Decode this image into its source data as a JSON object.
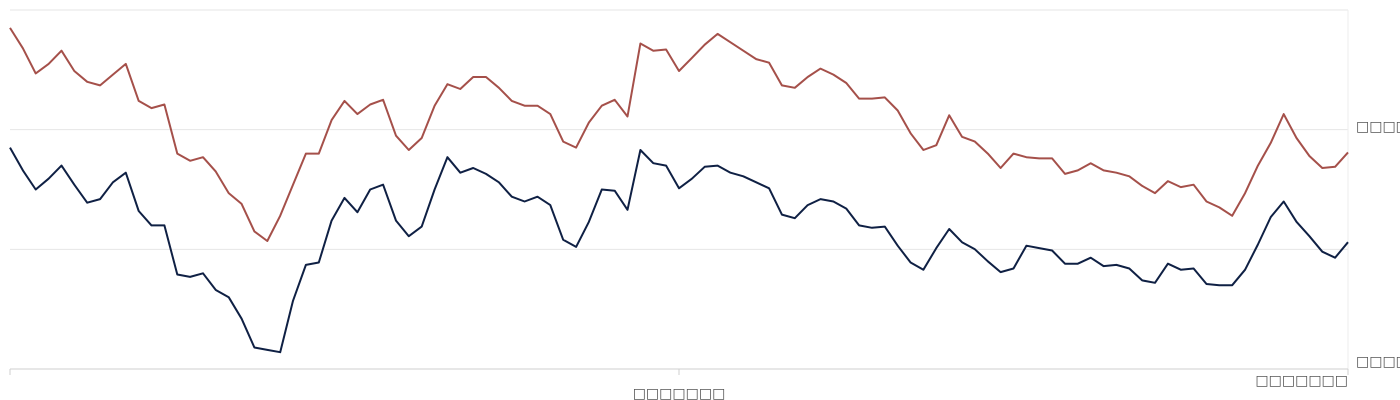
{
  "chart_data": {
    "type": "line",
    "title": "",
    "xlabel": "",
    "ylabel": "",
    "ylim": [
      0,
      3
    ],
    "x_tick_labels": [
      "□□□□□□□",
      "□□□□□□□"
    ],
    "y_tick_labels": [
      "□□□□□□",
      "□□□□□□"
    ],
    "y_tick_values": [
      0,
      2
    ],
    "grid": true,
    "series": [
      {
        "color": "#a5504a",
        "values": [
          2.85,
          2.68,
          2.47,
          2.55,
          2.66,
          2.49,
          2.4,
          2.37,
          2.46,
          2.55,
          2.24,
          2.18,
          2.21,
          1.8,
          1.74,
          1.77,
          1.65,
          1.47,
          1.38,
          1.15,
          1.07,
          1.28,
          1.54,
          1.8,
          1.8,
          2.08,
          2.24,
          2.13,
          2.21,
          2.25,
          1.95,
          1.83,
          1.93,
          2.2,
          2.38,
          2.34,
          2.44,
          2.44,
          2.35,
          2.24,
          2.2,
          2.2,
          2.13,
          1.9,
          1.85,
          2.06,
          2.2,
          2.25,
          2.11,
          2.72,
          2.66,
          2.67,
          2.49,
          2.6,
          2.71,
          2.8,
          2.73,
          2.66,
          2.59,
          2.56,
          2.37,
          2.35,
          2.44,
          2.51,
          2.46,
          2.39,
          2.26,
          2.26,
          2.27,
          2.16,
          1.97,
          1.83,
          1.87,
          2.12,
          1.94,
          1.9,
          1.8,
          1.68,
          1.8,
          1.77,
          1.76,
          1.76,
          1.63,
          1.66,
          1.72,
          1.66,
          1.64,
          1.61,
          1.53,
          1.47,
          1.57,
          1.52,
          1.54,
          1.4,
          1.35,
          1.28,
          1.47,
          1.7,
          1.89,
          2.13,
          1.93,
          1.78,
          1.68,
          1.69,
          1.81
        ]
      },
      {
        "color": "#0f2044",
        "values": [
          1.85,
          1.66,
          1.5,
          1.59,
          1.7,
          1.54,
          1.39,
          1.42,
          1.56,
          1.64,
          1.32,
          1.2,
          1.2,
          0.79,
          0.77,
          0.8,
          0.66,
          0.6,
          0.42,
          0.18,
          0.16,
          0.14,
          0.57,
          0.87,
          0.89,
          1.24,
          1.43,
          1.31,
          1.5,
          1.54,
          1.24,
          1.11,
          1.19,
          1.5,
          1.77,
          1.64,
          1.68,
          1.63,
          1.56,
          1.44,
          1.4,
          1.44,
          1.37,
          1.08,
          1.02,
          1.23,
          1.5,
          1.49,
          1.33,
          1.83,
          1.72,
          1.7,
          1.51,
          1.59,
          1.69,
          1.7,
          1.64,
          1.61,
          1.56,
          1.51,
          1.29,
          1.26,
          1.37,
          1.42,
          1.4,
          1.34,
          1.2,
          1.18,
          1.19,
          1.03,
          0.89,
          0.83,
          1.01,
          1.17,
          1.06,
          1.0,
          0.9,
          0.81,
          0.84,
          1.03,
          1.01,
          0.99,
          0.88,
          0.88,
          0.93,
          0.86,
          0.87,
          0.84,
          0.74,
          0.72,
          0.88,
          0.83,
          0.84,
          0.71,
          0.7,
          0.7,
          0.83,
          1.04,
          1.27,
          1.4,
          1.23,
          1.11,
          0.98,
          0.93,
          1.06
        ]
      }
    ]
  }
}
